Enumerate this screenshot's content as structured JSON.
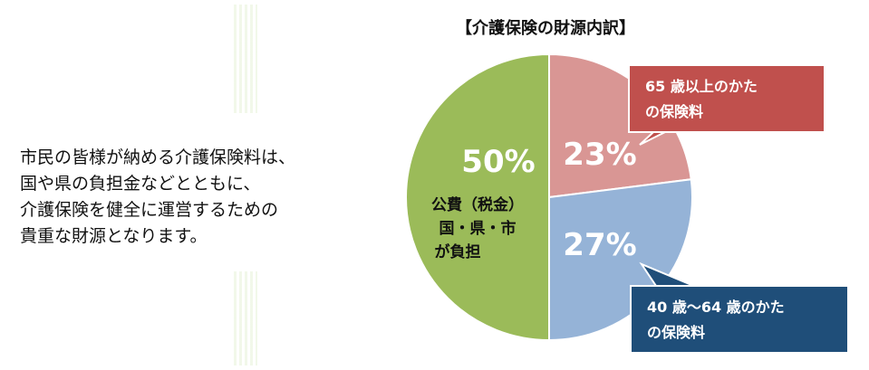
{
  "description": [
    "市民の皆様が納める介護保険料は、",
    "国や県の負担金などとともに、",
    "介護保険を健全に運営するための",
    "貴重な財源となります。"
  ],
  "chart_data": {
    "type": "pie",
    "title": "【介護保険の財源内訳】",
    "slices": [
      {
        "label": "65 歳以上のかたの保険料",
        "value": 23,
        "display": "23%",
        "color": "#d99694"
      },
      {
        "label": "40 歳〜64 歳のかたの保険料",
        "value": 27,
        "display": "27%",
        "color": "#95b3d7"
      },
      {
        "label": "公費（税金）国・県・市が負担",
        "value": 50,
        "display": "50%",
        "color": "#9bbb59"
      }
    ],
    "green_label": {
      "line1": "公費（税金）",
      "line2": "国・県・市",
      "line3": "が負担"
    },
    "callouts": [
      {
        "line1": "65 歳以上のかた",
        "line2": "の保険料",
        "color": "#c0504d"
      },
      {
        "line1": "40 歳〜64 歳のかた",
        "line2": "の保険料",
        "color": "#1f4e79"
      }
    ]
  }
}
